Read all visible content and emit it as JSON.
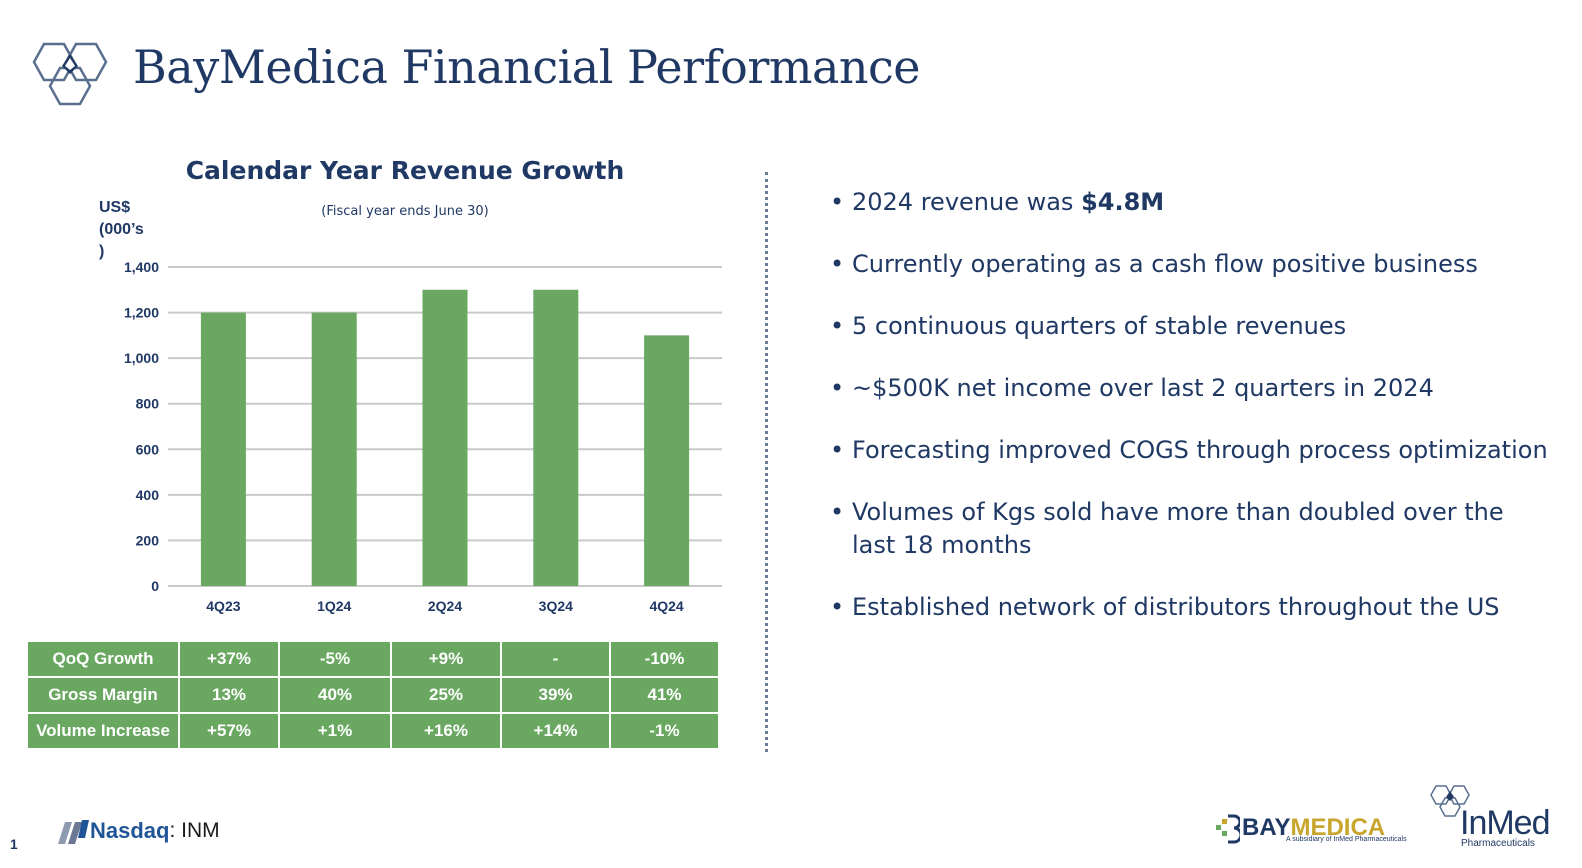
{
  "header": {
    "title": "BayMedica Financial Performance",
    "logo_icon": "hexagon-cluster-icon"
  },
  "chart_data": {
    "type": "bar",
    "title": "Calendar Year Revenue Growth",
    "subtitle": "(Fiscal year ends June 30)",
    "ylabel": "US$ (000’s )",
    "xlabel": "",
    "categories": [
      "4Q23",
      "1Q24",
      "2Q24",
      "3Q24",
      "4Q24"
    ],
    "values": [
      1200,
      1200,
      1300,
      1300,
      1100
    ],
    "ylim": [
      0,
      1400
    ],
    "yticks": [
      0,
      200,
      400,
      600,
      800,
      1000,
      1200,
      1400
    ],
    "ytick_labels": [
      "0",
      "200",
      "400",
      "600",
      "800",
      "1,000",
      "1,200",
      "1,400"
    ],
    "grid": true,
    "legend": "none",
    "bar_color": "#6aa862",
    "grid_color": "#c9c9c9"
  },
  "metrics_table": {
    "rows": [
      {
        "label": "QoQ Growth",
        "cells": [
          "+37%",
          "-5%",
          "+9%",
          "-",
          "-10%"
        ]
      },
      {
        "label": "Gross Margin",
        "cells": [
          "13%",
          "40%",
          "25%",
          "39%",
          "41%"
        ]
      },
      {
        "label": "Volume Increase",
        "cells": [
          "+57%",
          "+1%",
          "+16%",
          "+14%",
          "-1%"
        ]
      }
    ],
    "cell_color": "#6aa862"
  },
  "bullets": [
    {
      "text": "2024 revenue was ",
      "bold": "$4.8M"
    },
    {
      "text": "Currently operating as a cash flow positive business",
      "bold": ""
    },
    {
      "text": "5 continuous quarters of stable revenues",
      "bold": ""
    },
    {
      "text": "~$500K net income over last 2 quarters in 2024",
      "bold": ""
    },
    {
      "text": "Forecasting improved COGS through process optimization",
      "bold": ""
    },
    {
      "text": "Volumes of Kgs sold have more than doubled over the last 18 months",
      "bold": ""
    },
    {
      "text": "Established network of distributors throughout the US",
      "bold": ""
    }
  ],
  "footer": {
    "page_number": "1",
    "exchange_name": "Nasdaq",
    "ticker": ": INM",
    "exchange_icon": "nasdaq-icon",
    "brand1_part1": "BAY",
    "brand1_part2": "MEDICA",
    "brand1_sub": "A subsidiary of InMed Pharmaceuticals",
    "brand2_name": "InMed",
    "brand2_sub": "Pharmaceuticals",
    "colors": {
      "navy": "#1f3864",
      "gold": "#c8a52c",
      "green": "#6aa862"
    }
  }
}
